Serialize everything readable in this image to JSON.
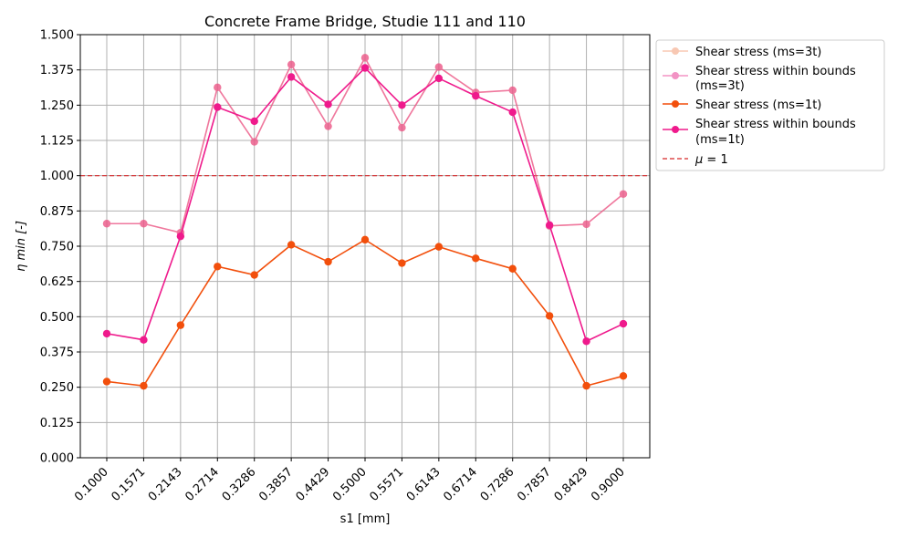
{
  "chart_data": {
    "type": "line",
    "title": "Concrete Frame Bridge, Studie 111 and 110",
    "xlabel": "s1 [mm]",
    "ylabel": "η min [-]",
    "ylim": [
      0,
      1.5
    ],
    "yticks": [
      "0.000",
      "0.125",
      "0.250",
      "0.375",
      "0.500",
      "0.625",
      "0.750",
      "0.875",
      "1.000",
      "1.125",
      "1.250",
      "1.375",
      "1.500"
    ],
    "categories": [
      "0.1000",
      "0.1571",
      "0.2143",
      "0.2714",
      "0.3286",
      "0.3857",
      "0.4429",
      "0.5000",
      "0.5571",
      "0.6143",
      "0.6714",
      "0.7286",
      "0.7857",
      "0.8429",
      "0.9000"
    ],
    "grid": true,
    "legend_position": "outside-right-top",
    "series": [
      {
        "name": "Shear stress (ms=3t)",
        "color": "#f4a582",
        "opacity": 0.6,
        "values": [
          0.83,
          0.83,
          0.798,
          1.313,
          1.12,
          1.394,
          1.175,
          1.418,
          1.17,
          1.385,
          1.295,
          1.303,
          0.822,
          0.828,
          0.935
        ]
      },
      {
        "name": "Shear stress within bounds (ms=3t)",
        "color": "#e7298a",
        "opacity": 0.5,
        "values": [
          0.83,
          0.83,
          0.798,
          1.313,
          1.12,
          1.394,
          1.175,
          1.418,
          1.17,
          1.385,
          1.295,
          1.303,
          0.822,
          0.828,
          0.935
        ]
      },
      {
        "name": "Shear stress (ms=1t)",
        "color": "#f24f0c",
        "opacity": 1,
        "values": [
          0.27,
          0.255,
          0.47,
          0.678,
          0.648,
          0.755,
          0.695,
          0.773,
          0.69,
          0.748,
          0.707,
          0.67,
          0.503,
          0.255,
          0.29
        ]
      },
      {
        "name": "Shear stress within bounds (ms=1t)",
        "color": "#ef1a8c",
        "opacity": 1,
        "values": [
          0.44,
          0.418,
          0.785,
          1.243,
          1.193,
          1.35,
          1.253,
          1.382,
          1.25,
          1.345,
          1.283,
          1.225,
          0.825,
          0.413,
          0.475
        ]
      }
    ],
    "reference_line": {
      "name": "μ = 1",
      "value": 1.0,
      "color": "#d62728",
      "style": "dashed"
    }
  }
}
